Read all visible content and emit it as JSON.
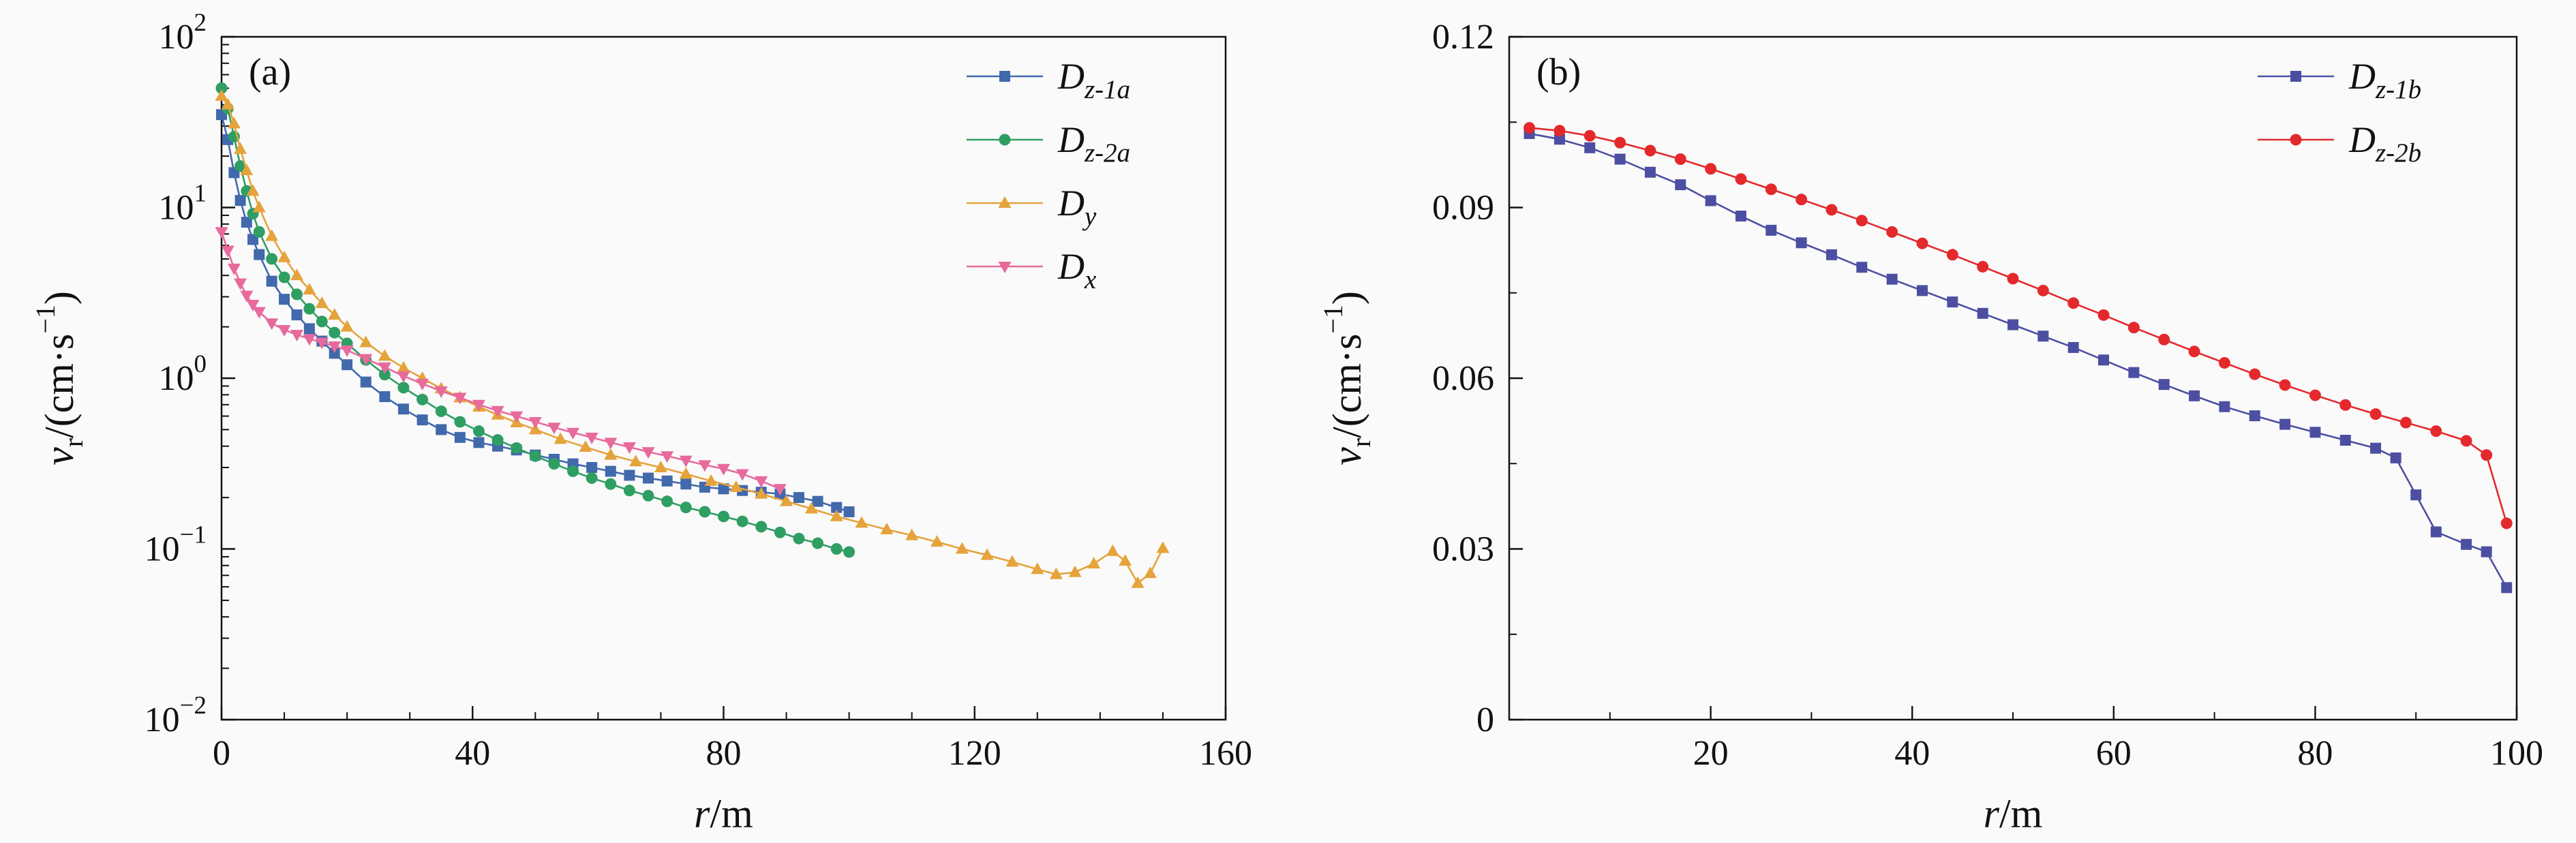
{
  "figure": {
    "background": "#fafafa",
    "text_color": "#111111"
  },
  "chart_data": [
    {
      "type": "line",
      "panel_tag": "(a)",
      "xlabel": {
        "var": "r",
        "rest": "/m"
      },
      "ylabel": {
        "var": "v",
        "sub": "r",
        "mid": "/(cm·s",
        "sup": "−1",
        "end": ")"
      },
      "x_axis": {
        "min": 0,
        "max": 160,
        "major": [
          {
            "v": 0,
            "label": "0"
          },
          {
            "v": 40,
            "label": "40"
          },
          {
            "v": 80,
            "label": "80"
          },
          {
            "v": 120,
            "label": "120"
          },
          {
            "v": 160,
            "label": "160"
          }
        ],
        "minor": [
          10,
          20,
          30,
          50,
          60,
          70,
          90,
          100,
          110,
          130,
          140,
          150
        ]
      },
      "y_axis": {
        "scale": "log",
        "min": 0.01,
        "max": 100,
        "major": [
          {
            "v": 100,
            "base": "10",
            "exp": "2"
          },
          {
            "v": 10,
            "base": "10",
            "exp": "1"
          },
          {
            "v": 1,
            "base": "10",
            "exp": "0"
          },
          {
            "v": 0.1,
            "base": "10",
            "exp": "−1"
          },
          {
            "v": 0.01,
            "base": "10",
            "exp": "−2"
          }
        ]
      },
      "legend_position": "top-right",
      "series": [
        {
          "name_main": "D",
          "name_sub": "z-1a",
          "color": "#4169ac",
          "marker": "square",
          "x": [
            0,
            1,
            2,
            3,
            4,
            5,
            6,
            8,
            10,
            12,
            14,
            16,
            18,
            20,
            23,
            26,
            29,
            32,
            35,
            38,
            41,
            44,
            47,
            50,
            53,
            56,
            59,
            62,
            65,
            68,
            71,
            74,
            77,
            80,
            83,
            86,
            89,
            92,
            95,
            98,
            100
          ],
          "y": [
            35,
            25,
            16,
            11,
            8.2,
            6.5,
            5.3,
            3.7,
            2.9,
            2.35,
            1.95,
            1.65,
            1.4,
            1.2,
            0.95,
            0.78,
            0.66,
            0.57,
            0.5,
            0.45,
            0.42,
            0.4,
            0.38,
            0.355,
            0.335,
            0.315,
            0.3,
            0.285,
            0.27,
            0.26,
            0.25,
            0.24,
            0.23,
            0.225,
            0.22,
            0.215,
            0.21,
            0.2,
            0.19,
            0.175,
            0.165
          ]
        },
        {
          "name_main": "D",
          "name_sub": "z-2a",
          "color": "#2f9e63",
          "marker": "circle",
          "x": [
            0,
            1,
            2,
            3,
            4,
            5,
            6,
            8,
            10,
            12,
            14,
            16,
            18,
            20,
            23,
            26,
            29,
            32,
            35,
            38,
            41,
            44,
            47,
            50,
            53,
            56,
            59,
            62,
            65,
            68,
            71,
            74,
            77,
            80,
            83,
            86,
            89,
            92,
            95,
            98,
            100
          ],
          "y": [
            50,
            38,
            26,
            17.5,
            12.5,
            9.2,
            7.2,
            5.0,
            3.9,
            3.1,
            2.55,
            2.15,
            1.85,
            1.6,
            1.28,
            1.05,
            0.88,
            0.75,
            0.64,
            0.555,
            0.49,
            0.435,
            0.39,
            0.35,
            0.315,
            0.285,
            0.26,
            0.24,
            0.22,
            0.205,
            0.19,
            0.175,
            0.165,
            0.155,
            0.145,
            0.135,
            0.125,
            0.115,
            0.108,
            0.1,
            0.096
          ]
        },
        {
          "name_main": "D",
          "name_sub": "y",
          "color": "#e5a33b",
          "marker": "triangle-up",
          "x": [
            0,
            1,
            2,
            3,
            4,
            5,
            6,
            8,
            10,
            12,
            14,
            16,
            18,
            20,
            23,
            26,
            29,
            32,
            35,
            38,
            41,
            44,
            47,
            50,
            54,
            58,
            62,
            66,
            70,
            74,
            78,
            82,
            86,
            90,
            94,
            98,
            102,
            106,
            110,
            114,
            118,
            122,
            126,
            130,
            133,
            136,
            139,
            142,
            144,
            146,
            148,
            150
          ],
          "y": [
            45,
            40,
            31,
            22,
            16.5,
            12.5,
            10,
            6.8,
            5.1,
            4.0,
            3.3,
            2.75,
            2.35,
            2.0,
            1.62,
            1.35,
            1.15,
            1.0,
            0.87,
            0.77,
            0.68,
            0.61,
            0.55,
            0.5,
            0.44,
            0.395,
            0.355,
            0.325,
            0.3,
            0.275,
            0.25,
            0.23,
            0.21,
            0.19,
            0.172,
            0.155,
            0.142,
            0.13,
            0.12,
            0.11,
            0.1,
            0.092,
            0.084,
            0.076,
            0.071,
            0.073,
            0.082,
            0.097,
            0.085,
            0.063,
            0.072,
            0.101
          ]
        },
        {
          "name_main": "D",
          "name_sub": "x",
          "color": "#e86a9d",
          "marker": "triangle-down",
          "x": [
            0,
            1,
            2,
            3,
            4,
            5,
            6,
            8,
            10,
            12,
            14,
            16,
            18,
            20,
            23,
            26,
            29,
            32,
            35,
            38,
            41,
            44,
            47,
            50,
            53,
            56,
            59,
            62,
            65,
            68,
            71,
            74,
            77,
            80,
            83,
            86,
            89
          ],
          "y": [
            7.2,
            5.6,
            4.4,
            3.6,
            3.05,
            2.7,
            2.45,
            2.1,
            1.92,
            1.8,
            1.7,
            1.62,
            1.54,
            1.46,
            1.3,
            1.16,
            1.03,
            0.93,
            0.84,
            0.77,
            0.7,
            0.645,
            0.6,
            0.555,
            0.515,
            0.48,
            0.45,
            0.42,
            0.395,
            0.37,
            0.35,
            0.33,
            0.31,
            0.295,
            0.275,
            0.25,
            0.225
          ]
        }
      ]
    },
    {
      "type": "line",
      "panel_tag": "(b)",
      "xlabel": {
        "var": "r",
        "rest": "/m"
      },
      "ylabel": {
        "var": "v",
        "sub": "r",
        "mid": "/(cm·s",
        "sup": "−1",
        "end": ")"
      },
      "x_axis": {
        "min": 0,
        "max": 100,
        "major": [
          {
            "v": 20,
            "label": "20"
          },
          {
            "v": 40,
            "label": "40"
          },
          {
            "v": 60,
            "label": "60"
          },
          {
            "v": 80,
            "label": "80"
          },
          {
            "v": 100,
            "label": "100"
          }
        ],
        "minor": [
          10,
          30,
          50,
          70,
          90
        ]
      },
      "y_axis": {
        "scale": "linear",
        "min": 0,
        "max": 0.12,
        "major": [
          {
            "v": 0,
            "label": "0"
          },
          {
            "v": 0.03,
            "label": "0.03"
          },
          {
            "v": 0.06,
            "label": "0.06"
          },
          {
            "v": 0.09,
            "label": "0.09"
          },
          {
            "v": 0.12,
            "label": "0.12"
          }
        ],
        "minor": [
          0.015,
          0.045,
          0.075,
          0.105
        ]
      },
      "legend_position": "top-right",
      "series": [
        {
          "name_main": "D",
          "name_sub": "z-1b",
          "color": "#4c4fa1",
          "marker": "square",
          "x": [
            2,
            5,
            8,
            11,
            14,
            17,
            20,
            23,
            26,
            29,
            32,
            35,
            38,
            41,
            44,
            47,
            50,
            53,
            56,
            59,
            62,
            65,
            68,
            71,
            74,
            77,
            80,
            83,
            86,
            88,
            90,
            92,
            95,
            97,
            99
          ],
          "y": [
            0.103,
            0.102,
            0.1005,
            0.0985,
            0.0962,
            0.094,
            0.0912,
            0.0885,
            0.086,
            0.0838,
            0.0817,
            0.0795,
            0.0774,
            0.0754,
            0.0734,
            0.0714,
            0.0694,
            0.0674,
            0.0654,
            0.0632,
            0.061,
            0.0589,
            0.0569,
            0.055,
            0.0534,
            0.0519,
            0.0505,
            0.0491,
            0.0477,
            0.046,
            0.0395,
            0.033,
            0.0308,
            0.0295,
            0.0232
          ]
        },
        {
          "name_main": "D",
          "name_sub": "z-2b",
          "color": "#e4292d",
          "marker": "circle",
          "x": [
            2,
            5,
            8,
            11,
            14,
            17,
            20,
            23,
            26,
            29,
            32,
            35,
            38,
            41,
            44,
            47,
            50,
            53,
            56,
            59,
            62,
            65,
            68,
            71,
            74,
            77,
            80,
            83,
            86,
            89,
            92,
            95,
            97,
            99
          ],
          "y": [
            0.104,
            0.1035,
            0.1026,
            0.1014,
            0.1,
            0.0985,
            0.0968,
            0.095,
            0.0932,
            0.0914,
            0.0896,
            0.0877,
            0.0857,
            0.0837,
            0.0817,
            0.0796,
            0.0775,
            0.0754,
            0.0732,
            0.0711,
            0.0689,
            0.0668,
            0.0647,
            0.0627,
            0.0607,
            0.0588,
            0.057,
            0.0553,
            0.0537,
            0.0522,
            0.0507,
            0.049,
            0.0465,
            0.0345
          ]
        }
      ]
    }
  ]
}
